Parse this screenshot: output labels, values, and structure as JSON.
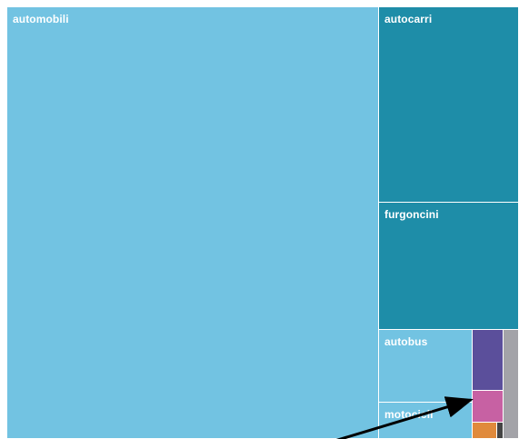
{
  "chart_data": {
    "type": "treemap",
    "title": "",
    "tiles": [
      {
        "id": "automobili",
        "label": "automobili",
        "color": "#72c3e2"
      },
      {
        "id": "autocarri",
        "label": "autocarri",
        "color": "#1e8da8"
      },
      {
        "id": "furgoncini",
        "label": "furgoncini",
        "color": "#1e8da8"
      },
      {
        "id": "autobus",
        "label": "autobus",
        "color": "#72c3e2"
      },
      {
        "id": "motocicli",
        "label": "motocicli",
        "color": "#72c3e2"
      },
      {
        "id": "small-purple",
        "label": "",
        "color": "#5b4f9b"
      },
      {
        "id": "small-pink",
        "label": "",
        "color": "#c761a3"
      },
      {
        "id": "small-orange",
        "label": "",
        "color": "#e08a3c"
      },
      {
        "id": "small-dark",
        "label": "",
        "color": "#444444"
      },
      {
        "id": "small-gray",
        "label": "",
        "color": "#a3a3a8"
      }
    ],
    "annotation": {
      "type": "arrow",
      "color": "#000000",
      "points_to": "small-pink"
    }
  }
}
